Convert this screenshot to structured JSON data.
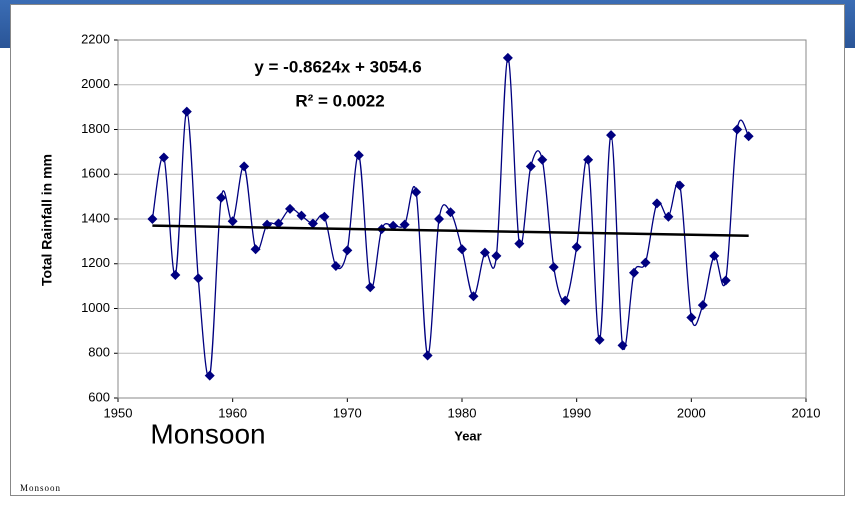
{
  "chart_data": {
    "type": "line",
    "label": "Monsoon",
    "x_label": "Year",
    "y_label": "Total Rainfall in mm",
    "annotations": [
      "y = -0.8624x + 3054.6",
      "R² = 0.0022"
    ],
    "x": [
      1953,
      1954,
      1955,
      1956,
      1957,
      1958,
      1959,
      1960,
      1961,
      1962,
      1963,
      1964,
      1965,
      1966,
      1967,
      1968,
      1969,
      1970,
      1971,
      1972,
      1973,
      1974,
      1975,
      1976,
      1977,
      1978,
      1979,
      1980,
      1981,
      1982,
      1983,
      1984,
      1985,
      1986,
      1987,
      1988,
      1989,
      1990,
      1991,
      1992,
      1993,
      1994,
      1995,
      1996,
      1997,
      1998,
      1999,
      2000,
      2001,
      2002,
      2003,
      2004,
      2005
    ],
    "series": [
      {
        "color": "#000080",
        "values": [
          1400,
          1675,
          1150,
          1880,
          1135,
          700,
          1495,
          1390,
          1635,
          1265,
          1375,
          1380,
          1445,
          1415,
          1380,
          1410,
          1190,
          1260,
          1685,
          1095,
          1355,
          1370,
          1375,
          1520,
          790,
          1400,
          1430,
          1265,
          1055,
          1250,
          1235,
          2120,
          1290,
          1635,
          1665,
          1185,
          1035,
          1275,
          1665,
          860,
          1775,
          835,
          1160,
          1205,
          1470,
          1410,
          1550,
          960,
          1015,
          1235,
          1125,
          1800,
          1770
        ]
      }
    ],
    "trendline": {
      "color": "#000000",
      "x": [
        1953,
        2005
      ],
      "values": [
        1370.2,
        1325.4
      ]
    },
    "xlim": [
      1950,
      2010
    ],
    "xticks": [
      1950,
      1960,
      1970,
      1980,
      1990,
      2000,
      2010
    ],
    "ylim": [
      600,
      2200
    ],
    "yticks": [
      600,
      800,
      1000,
      1200,
      1400,
      1600,
      1800,
      2000,
      2200
    ],
    "grid": true
  },
  "caption": "Monsoon"
}
